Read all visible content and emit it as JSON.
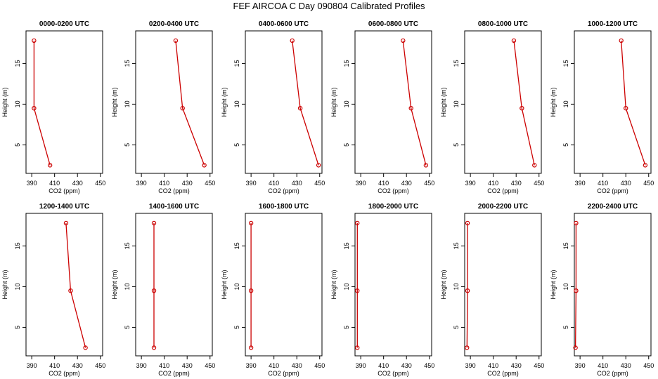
{
  "title": "FEF AIRCOA C  Day 090804  Calibrated Profiles",
  "chart_data": [
    {
      "type": "line",
      "title": "0000-0200 UTC",
      "xlabel": "CO2 (ppm)",
      "ylabel": "Height (m)",
      "xlim": [
        385,
        452
      ],
      "ylim": [
        1.5,
        19
      ],
      "xticks": [
        390,
        410,
        430,
        450
      ],
      "yticks": [
        5,
        10,
        15
      ],
      "x": [
        392,
        392,
        406
      ],
      "y": [
        17.8,
        9.5,
        2.5
      ]
    },
    {
      "type": "line",
      "title": "0200-0400 UTC",
      "xlabel": "CO2 (ppm)",
      "ylabel": "Height (m)",
      "xlim": [
        385,
        452
      ],
      "ylim": [
        1.5,
        19
      ],
      "xticks": [
        390,
        410,
        430,
        450
      ],
      "yticks": [
        5,
        10,
        15
      ],
      "x": [
        420,
        426,
        445
      ],
      "y": [
        17.8,
        9.5,
        2.5
      ]
    },
    {
      "type": "line",
      "title": "0400-0600 UTC",
      "xlabel": "CO2 (ppm)",
      "ylabel": "Height (m)",
      "xlim": [
        385,
        452
      ],
      "ylim": [
        1.5,
        19
      ],
      "xticks": [
        390,
        410,
        430,
        450
      ],
      "yticks": [
        5,
        10,
        15
      ],
      "x": [
        426,
        433,
        449
      ],
      "y": [
        17.8,
        9.5,
        2.5
      ]
    },
    {
      "type": "line",
      "title": "0600-0800 UTC",
      "xlabel": "CO2 (ppm)",
      "ylabel": "Height (m)",
      "xlim": [
        385,
        452
      ],
      "ylim": [
        1.5,
        19
      ],
      "xticks": [
        390,
        410,
        430,
        450
      ],
      "yticks": [
        5,
        10,
        15
      ],
      "x": [
        427,
        434,
        447
      ],
      "y": [
        17.8,
        9.5,
        2.5
      ]
    },
    {
      "type": "line",
      "title": "0800-1000 UTC",
      "xlabel": "CO2 (ppm)",
      "ylabel": "Height (m)",
      "xlim": [
        385,
        452
      ],
      "ylim": [
        1.5,
        19
      ],
      "xticks": [
        390,
        410,
        430,
        450
      ],
      "yticks": [
        5,
        10,
        15
      ],
      "x": [
        428,
        435,
        446
      ],
      "y": [
        17.8,
        9.5,
        2.5
      ]
    },
    {
      "type": "line",
      "title": "1000-1200 UTC",
      "xlabel": "CO2 (ppm)",
      "ylabel": "Height (m)",
      "xlim": [
        385,
        452
      ],
      "ylim": [
        1.5,
        19
      ],
      "xticks": [
        390,
        410,
        430,
        450
      ],
      "yticks": [
        5,
        10,
        15
      ],
      "x": [
        426,
        430,
        447
      ],
      "y": [
        17.8,
        9.5,
        2.5
      ]
    },
    {
      "type": "line",
      "title": "1200-1400 UTC",
      "xlabel": "CO2 (ppm)",
      "ylabel": "Height (m)",
      "xlim": [
        385,
        452
      ],
      "ylim": [
        1.5,
        19
      ],
      "xticks": [
        390,
        410,
        430,
        450
      ],
      "yticks": [
        5,
        10,
        15
      ],
      "x": [
        420,
        424,
        437
      ],
      "y": [
        17.8,
        9.5,
        2.5
      ]
    },
    {
      "type": "line",
      "title": "1400-1600 UTC",
      "xlabel": "CO2 (ppm)",
      "ylabel": "Height (m)",
      "xlim": [
        385,
        452
      ],
      "ylim": [
        1.5,
        19
      ],
      "xticks": [
        390,
        410,
        430,
        450
      ],
      "yticks": [
        5,
        10,
        15
      ],
      "x": [
        401,
        401,
        401
      ],
      "y": [
        17.8,
        9.5,
        2.5
      ]
    },
    {
      "type": "line",
      "title": "1600-1800 UTC",
      "xlabel": "CO2 (ppm)",
      "ylabel": "Height (m)",
      "xlim": [
        385,
        452
      ],
      "ylim": [
        1.5,
        19
      ],
      "xticks": [
        390,
        410,
        430,
        450
      ],
      "yticks": [
        5,
        10,
        15
      ],
      "x": [
        390,
        390,
        390
      ],
      "y": [
        17.8,
        9.5,
        2.5
      ]
    },
    {
      "type": "line",
      "title": "1800-2000 UTC",
      "xlabel": "CO2 (ppm)",
      "ylabel": "Height (m)",
      "xlim": [
        385,
        452
      ],
      "ylim": [
        1.5,
        19
      ],
      "xticks": [
        390,
        410,
        430,
        450
      ],
      "yticks": [
        5,
        10,
        15
      ],
      "x": [
        387,
        387,
        387
      ],
      "y": [
        17.8,
        9.5,
        2.5
      ]
    },
    {
      "type": "line",
      "title": "2000-2200 UTC",
      "xlabel": "CO2 (ppm)",
      "ylabel": "Height (m)",
      "xlim": [
        385,
        452
      ],
      "ylim": [
        1.5,
        19
      ],
      "xticks": [
        390,
        410,
        430,
        450
      ],
      "yticks": [
        5,
        10,
        15
      ],
      "x": [
        387.5,
        387.5,
        387
      ],
      "y": [
        17.8,
        9.5,
        2.5
      ]
    },
    {
      "type": "line",
      "title": "2200-2400 UTC",
      "xlabel": "CO2 (ppm)",
      "ylabel": "Height (m)",
      "xlim": [
        385,
        452
      ],
      "ylim": [
        1.5,
        19
      ],
      "xticks": [
        390,
        410,
        430,
        450
      ],
      "yticks": [
        5,
        10,
        15
      ],
      "x": [
        386.5,
        386.5,
        386
      ],
      "y": [
        17.8,
        9.5,
        2.5
      ]
    }
  ],
  "colors": {
    "line": "#cc0000",
    "marker": "#cc0000",
    "axis": "#000000"
  }
}
